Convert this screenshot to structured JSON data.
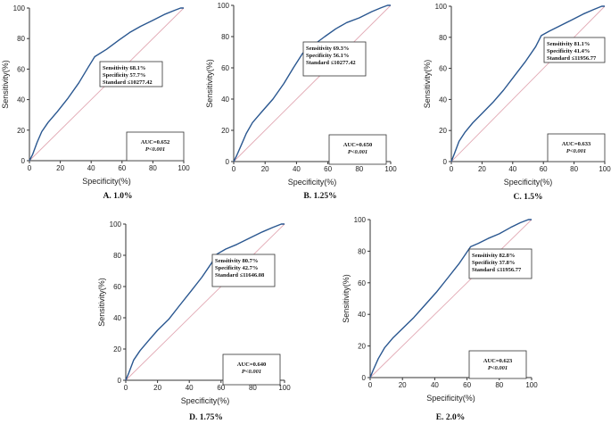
{
  "chart_data": [
    {
      "type": "line",
      "caption": "A.  1.0%",
      "xlabel": "Specificity(%)",
      "ylabel": "Sensitivity(%)",
      "xlim": [
        0,
        100
      ],
      "ylim": [
        0,
        100
      ],
      "ticks": [
        "0",
        "20",
        "40",
        "60",
        "80",
        "100"
      ],
      "cutoff": [
        "Sensitivity 68.1%",
        "Specificity 57.7%",
        "Standard ≤10277.42"
      ],
      "auc": [
        "AUC=0.652",
        "P<0.001"
      ],
      "series": [
        {
          "name": "ROC",
          "x": [
            0,
            2,
            5,
            8,
            12,
            18,
            25,
            32,
            38,
            42.3,
            50,
            58,
            65,
            72,
            80,
            88,
            94,
            98,
            100
          ],
          "y": [
            0,
            4,
            12,
            19,
            25,
            32,
            41,
            51,
            61,
            68.1,
            73,
            79,
            84,
            88,
            92,
            96,
            98.5,
            100,
            100
          ]
        }
      ]
    },
    {
      "type": "line",
      "caption": "B.  1.25%",
      "xlabel": "Specificity(%)",
      "ylabel": "Sensitivity(%)",
      "xlim": [
        0,
        100
      ],
      "ylim": [
        0,
        100
      ],
      "ticks": [
        "0",
        "20",
        "40",
        "60",
        "80",
        "100"
      ],
      "cutoff": [
        "Sensitivity 69.3%",
        "Specificity 56.1%",
        "Standard ≤10277.42"
      ],
      "auc": [
        "AUC=0.650",
        "P<0.001"
      ],
      "series": [
        {
          "name": "ROC",
          "x": [
            0,
            2,
            5,
            8,
            12,
            18,
            25,
            32,
            38,
            43.9,
            50,
            58,
            65,
            72,
            80,
            88,
            94,
            98,
            100
          ],
          "y": [
            0,
            4,
            11,
            18,
            25,
            32,
            40,
            50,
            60,
            69.3,
            74,
            80,
            85,
            89,
            92,
            96,
            98.5,
            100,
            100
          ]
        }
      ]
    },
    {
      "type": "line",
      "caption": "C.  1.5%",
      "xlabel": "Specificity(%)",
      "ylabel": "Sensitivity(%)",
      "xlim": [
        0,
        100
      ],
      "ylim": [
        0,
        100
      ],
      "ticks": [
        "0",
        "20",
        "40",
        "60",
        "80",
        "100"
      ],
      "cutoff": [
        "Sensitivity 81.1%",
        "Specificity 41.4%",
        "Standard ≤11956.77"
      ],
      "auc": [
        "AUC=0.633",
        "P<0.001"
      ],
      "series": [
        {
          "name": "ROC",
          "x": [
            0,
            2,
            5,
            9,
            14,
            20,
            27,
            34,
            41,
            48,
            55,
            58.6,
            64,
            70,
            78,
            86,
            93,
            98,
            100
          ],
          "y": [
            0,
            5,
            13,
            19,
            25,
            31,
            38,
            46,
            55,
            64,
            74,
            81.1,
            84,
            87,
            91,
            95,
            98,
            100,
            100
          ]
        }
      ]
    },
    {
      "type": "line",
      "caption": "D.  1.75%",
      "xlabel": "Specificity(%)",
      "ylabel": "Sensitivity(%)",
      "xlim": [
        0,
        100
      ],
      "ylim": [
        0,
        100
      ],
      "ticks": [
        "0",
        "20",
        "40",
        "60",
        "80",
        "100"
      ],
      "cutoff": [
        "Sensitivity 80.7%",
        "Specificity 42.7%",
        "Standard ≤11646.08"
      ],
      "auc": [
        "AUC=0.640",
        "P<0.001"
      ],
      "series": [
        {
          "name": "ROC",
          "x": [
            0,
            2,
            5,
            9,
            14,
            20,
            27,
            34,
            41,
            48,
            54,
            57.3,
            63,
            70,
            78,
            86,
            93,
            98,
            100
          ],
          "y": [
            0,
            5,
            13,
            19,
            25,
            32,
            39,
            48,
            57,
            66,
            75,
            80.7,
            84,
            87,
            91,
            95,
            98,
            100,
            100
          ]
        }
      ]
    },
    {
      "type": "line",
      "caption": "E.  2.0%",
      "xlabel": "Specificity(%)",
      "ylabel": "Sensitivity(%)",
      "xlim": [
        0,
        100
      ],
      "ylim": [
        0,
        100
      ],
      "ticks": [
        "0",
        "20",
        "40",
        "60",
        "80",
        "100"
      ],
      "cutoff": [
        "Sensitivity 82.8%",
        "Specificity 37.8%",
        "Standard ≤11956.77"
      ],
      "auc": [
        "AUC=0.623",
        "P<0.001"
      ],
      "series": [
        {
          "name": "ROC",
          "x": [
            0,
            2,
            5,
            9,
            14,
            20,
            27,
            34,
            41,
            48,
            55,
            62.2,
            67,
            73,
            80,
            87,
            93,
            98,
            100
          ],
          "y": [
            0,
            5,
            12,
            19,
            25,
            31,
            38,
            46,
            54,
            63,
            72,
            82.8,
            85,
            88,
            91,
            95,
            98,
            100,
            100
          ]
        }
      ]
    }
  ]
}
